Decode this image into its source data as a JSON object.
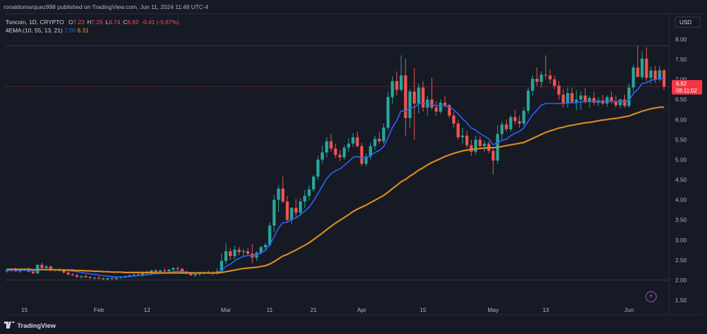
{
  "header": {
    "publisher_line": "ronaldomarquez998 published on TradingView.com, Jun 11, 2024 11:48 UTC-4",
    "symbol_line": "Toncoin, 1D, CRYPTO",
    "ohlc": [
      {
        "k": "O",
        "v": "7.23"
      },
      {
        "k": "H",
        "v": "7.25"
      },
      {
        "k": "L",
        "v": "6.74"
      },
      {
        "k": "C",
        "v": "6.82"
      },
      {
        "k": "",
        "v": "-0.41 (-5.67%)"
      }
    ],
    "indicator_label": "4EMA (10, 55, 13, 21)",
    "ema_fast_value": "7.00",
    "ema_slow_value": "6.31"
  },
  "currency_button": "USD",
  "last_price_tag": {
    "price": "6.82",
    "countdown": "08:11:02"
  },
  "brand": "TradingView",
  "colors": {
    "background": "#161a25",
    "up": "#26a69a",
    "down": "#ef5350",
    "ema_fast": "#2962ff",
    "ema_slow": "#d98b1e"
  },
  "chart_data": {
    "type": "candlestick",
    "ylim": [
      1.5,
      8.0
    ],
    "y_ticks": [
      "8.00",
      "7.50",
      "7.00",
      "6.50",
      "6.00",
      "5.50",
      "5.00",
      "4.50",
      "4.00",
      "3.50",
      "3.00",
      "2.50",
      "2.00",
      "1.50"
    ],
    "x_ticks": [
      {
        "label": "15",
        "index": 4
      },
      {
        "label": "Feb",
        "index": 21
      },
      {
        "label": "12",
        "index": 32
      },
      {
        "label": "Mar",
        "index": 50
      },
      {
        "label": "11",
        "index": 60
      },
      {
        "label": "21",
        "index": 70
      },
      {
        "label": "Apr",
        "index": 81
      },
      {
        "label": "15",
        "index": 95
      },
      {
        "label": "May",
        "index": 111
      },
      {
        "label": "13",
        "index": 123
      },
      {
        "label": "Jun",
        "index": 142
      }
    ],
    "candles": [
      [
        2.22,
        2.28,
        2.18,
        2.25
      ],
      [
        2.25,
        2.3,
        2.2,
        2.27
      ],
      [
        2.27,
        2.31,
        2.2,
        2.22
      ],
      [
        2.22,
        2.26,
        2.18,
        2.24
      ],
      [
        2.24,
        2.3,
        2.22,
        2.28
      ],
      [
        2.28,
        2.32,
        2.2,
        2.21
      ],
      [
        2.21,
        2.24,
        2.15,
        2.17
      ],
      [
        2.17,
        2.4,
        2.15,
        2.38
      ],
      [
        2.38,
        2.44,
        2.28,
        2.3
      ],
      [
        2.3,
        2.38,
        2.26,
        2.34
      ],
      [
        2.34,
        2.36,
        2.22,
        2.24
      ],
      [
        2.24,
        2.28,
        2.2,
        2.26
      ],
      [
        2.26,
        2.3,
        2.22,
        2.27
      ],
      [
        2.27,
        2.28,
        2.16,
        2.19
      ],
      [
        2.19,
        2.22,
        2.12,
        2.14
      ],
      [
        2.14,
        2.18,
        2.1,
        2.12
      ],
      [
        2.12,
        2.16,
        2.06,
        2.08
      ],
      [
        2.08,
        2.12,
        2.04,
        2.1
      ],
      [
        2.1,
        2.14,
        2.06,
        2.07
      ],
      [
        2.07,
        2.1,
        2.03,
        2.05
      ],
      [
        2.05,
        2.08,
        2.01,
        2.06
      ],
      [
        2.06,
        2.1,
        2.02,
        2.04
      ],
      [
        2.04,
        2.07,
        2.0,
        2.02
      ],
      [
        2.02,
        2.06,
        1.99,
        2.05
      ],
      [
        2.05,
        2.08,
        2.01,
        2.03
      ],
      [
        2.03,
        2.07,
        2.0,
        2.06
      ],
      [
        2.06,
        2.1,
        2.03,
        2.08
      ],
      [
        2.08,
        2.12,
        2.05,
        2.1
      ],
      [
        2.1,
        2.14,
        2.07,
        2.12
      ],
      [
        2.12,
        2.16,
        2.08,
        2.14
      ],
      [
        2.14,
        2.2,
        2.1,
        2.12
      ],
      [
        2.12,
        2.22,
        2.08,
        2.2
      ],
      [
        2.2,
        2.24,
        2.14,
        2.16
      ],
      [
        2.16,
        2.26,
        2.12,
        2.24
      ],
      [
        2.24,
        2.28,
        2.18,
        2.2
      ],
      [
        2.2,
        2.26,
        2.16,
        2.24
      ],
      [
        2.24,
        2.3,
        2.2,
        2.22
      ],
      [
        2.22,
        2.28,
        2.18,
        2.26
      ],
      [
        2.26,
        2.32,
        2.22,
        2.3
      ],
      [
        2.3,
        2.34,
        2.24,
        2.28
      ],
      [
        2.28,
        2.3,
        2.18,
        2.2
      ],
      [
        2.2,
        2.24,
        2.14,
        2.16
      ],
      [
        2.16,
        2.2,
        2.1,
        2.12
      ],
      [
        2.12,
        2.18,
        2.08,
        2.15
      ],
      [
        2.15,
        2.2,
        2.1,
        2.18
      ],
      [
        2.18,
        2.22,
        2.14,
        2.2
      ],
      [
        2.2,
        2.24,
        2.16,
        2.18
      ],
      [
        2.18,
        2.22,
        2.12,
        2.16
      ],
      [
        2.16,
        2.3,
        2.14,
        2.22
      ],
      [
        2.22,
        2.66,
        2.18,
        2.48
      ],
      [
        2.48,
        2.92,
        2.4,
        2.72
      ],
      [
        2.72,
        2.8,
        2.5,
        2.6
      ],
      [
        2.6,
        2.86,
        2.52,
        2.76
      ],
      [
        2.76,
        2.82,
        2.62,
        2.7
      ],
      [
        2.7,
        2.78,
        2.58,
        2.72
      ],
      [
        2.72,
        2.8,
        2.6,
        2.66
      ],
      [
        2.66,
        2.9,
        2.42,
        2.56
      ],
      [
        2.56,
        2.72,
        2.48,
        2.68
      ],
      [
        2.68,
        2.86,
        2.64,
        2.82
      ],
      [
        2.82,
        2.92,
        2.72,
        2.88
      ],
      [
        2.88,
        3.44,
        2.84,
        3.36
      ],
      [
        3.36,
        4.12,
        3.2,
        4.0
      ],
      [
        4.0,
        4.36,
        3.7,
        4.28
      ],
      [
        4.28,
        4.58,
        3.92,
        3.96
      ],
      [
        3.96,
        4.1,
        3.46,
        3.5
      ],
      [
        3.5,
        3.82,
        3.4,
        3.8
      ],
      [
        3.8,
        4.02,
        3.56,
        3.68
      ],
      [
        3.68,
        4.04,
        3.6,
        3.96
      ],
      [
        3.96,
        4.24,
        3.8,
        4.1
      ],
      [
        4.1,
        4.36,
        3.98,
        4.26
      ],
      [
        4.26,
        4.62,
        4.2,
        4.58
      ],
      [
        4.58,
        5.1,
        4.5,
        5.0
      ],
      [
        5.0,
        5.36,
        4.9,
        5.18
      ],
      [
        5.18,
        5.56,
        5.06,
        5.46
      ],
      [
        5.46,
        5.64,
        5.2,
        5.28
      ],
      [
        5.28,
        5.4,
        5.04,
        5.12
      ],
      [
        5.12,
        5.24,
        4.96,
        5.06
      ],
      [
        5.06,
        5.36,
        5.0,
        5.3
      ],
      [
        5.3,
        5.54,
        5.2,
        5.4
      ],
      [
        5.4,
        5.66,
        5.32,
        5.56
      ],
      [
        5.56,
        5.7,
        5.3,
        5.34
      ],
      [
        5.34,
        5.42,
        4.84,
        4.9
      ],
      [
        4.9,
        5.16,
        4.84,
        5.08
      ],
      [
        5.08,
        5.42,
        5.0,
        5.34
      ],
      [
        5.34,
        5.6,
        5.24,
        5.52
      ],
      [
        5.52,
        5.7,
        5.4,
        5.46
      ],
      [
        5.46,
        5.9,
        5.4,
        5.8
      ],
      [
        5.8,
        6.7,
        5.72,
        6.56
      ],
      [
        6.56,
        7.08,
        6.4,
        6.96
      ],
      [
        6.96,
        7.2,
        6.6,
        6.74
      ],
      [
        6.74,
        7.6,
        6.7,
        7.1
      ],
      [
        7.1,
        7.52,
        5.6,
        6.04
      ],
      [
        6.04,
        6.76,
        5.8,
        6.7
      ],
      [
        6.7,
        7.28,
        5.5,
        6.4
      ],
      [
        6.4,
        6.9,
        6.16,
        6.8
      ],
      [
        6.8,
        6.96,
        6.2,
        6.3
      ],
      [
        6.3,
        6.6,
        6.1,
        6.5
      ],
      [
        6.5,
        7.04,
        6.24,
        6.3
      ],
      [
        6.3,
        6.46,
        6.1,
        6.2
      ],
      [
        6.2,
        6.5,
        6.14,
        6.42
      ],
      [
        6.42,
        6.58,
        6.3,
        6.36
      ],
      [
        6.36,
        6.4,
        6.04,
        6.1
      ],
      [
        6.1,
        6.2,
        5.8,
        5.9
      ],
      [
        5.9,
        6.0,
        5.5,
        5.56
      ],
      [
        5.56,
        5.8,
        5.4,
        5.6
      ],
      [
        5.6,
        5.72,
        5.3,
        5.36
      ],
      [
        5.36,
        5.5,
        5.1,
        5.2
      ],
      [
        5.2,
        5.6,
        5.12,
        5.5
      ],
      [
        5.5,
        5.58,
        5.28,
        5.34
      ],
      [
        5.34,
        5.48,
        5.2,
        5.4
      ],
      [
        5.4,
        5.46,
        5.16,
        5.22
      ],
      [
        5.22,
        5.28,
        4.62,
        4.98
      ],
      [
        4.98,
        5.86,
        4.9,
        5.64
      ],
      [
        5.64,
        5.96,
        5.5,
        5.88
      ],
      [
        5.88,
        6.0,
        5.7,
        5.76
      ],
      [
        5.76,
        6.12,
        5.7,
        6.06
      ],
      [
        6.06,
        6.24,
        5.88,
        5.96
      ],
      [
        5.96,
        6.1,
        5.8,
        5.9
      ],
      [
        5.9,
        6.3,
        5.84,
        6.22
      ],
      [
        6.22,
        6.8,
        6.14,
        6.72
      ],
      [
        6.72,
        7.1,
        6.6,
        7.02
      ],
      [
        7.02,
        7.3,
        6.84,
        6.94
      ],
      [
        6.94,
        7.2,
        6.8,
        7.12
      ],
      [
        7.12,
        7.6,
        7.0,
        7.1
      ],
      [
        7.1,
        7.24,
        6.9,
        7.0
      ],
      [
        7.0,
        7.1,
        6.76,
        6.84
      ],
      [
        6.84,
        6.96,
        6.5,
        6.62
      ],
      [
        6.62,
        6.76,
        6.3,
        6.4
      ],
      [
        6.4,
        6.8,
        6.3,
        6.66
      ],
      [
        6.66,
        6.8,
        6.4,
        6.44
      ],
      [
        6.44,
        6.74,
        6.22,
        6.5
      ],
      [
        6.5,
        6.7,
        6.24,
        6.6
      ],
      [
        6.6,
        6.78,
        6.4,
        6.46
      ],
      [
        6.46,
        6.6,
        6.3,
        6.54
      ],
      [
        6.54,
        6.7,
        6.36,
        6.42
      ],
      [
        6.42,
        6.56,
        6.34,
        6.48
      ],
      [
        6.48,
        6.62,
        6.36,
        6.4
      ],
      [
        6.4,
        6.6,
        6.32,
        6.56
      ],
      [
        6.56,
        6.7,
        6.4,
        6.44
      ],
      [
        6.44,
        6.6,
        6.3,
        6.36
      ],
      [
        6.36,
        6.52,
        6.28,
        6.5
      ],
      [
        6.5,
        6.62,
        6.3,
        6.34
      ],
      [
        6.34,
        6.9,
        6.3,
        6.8
      ],
      [
        6.8,
        7.36,
        6.7,
        7.3
      ],
      [
        7.3,
        7.84,
        7.1,
        7.06
      ],
      [
        7.06,
        7.7,
        7.0,
        7.52
      ],
      [
        7.52,
        7.8,
        6.96,
        7.04
      ],
      [
        7.04,
        7.32,
        6.9,
        7.22
      ],
      [
        7.22,
        7.34,
        6.92,
        7.0
      ],
      [
        7.0,
        7.34,
        6.94,
        7.23
      ],
      [
        7.23,
        7.25,
        6.74,
        6.82
      ]
    ],
    "series": [
      {
        "name": "EMA",
        "role": "fast",
        "values": [
          2.24,
          2.25,
          2.25,
          2.25,
          2.25,
          2.24,
          2.23,
          2.24,
          2.26,
          2.26,
          2.26,
          2.26,
          2.26,
          2.25,
          2.24,
          2.22,
          2.21,
          2.19,
          2.17,
          2.16,
          2.14,
          2.13,
          2.11,
          2.1,
          2.09,
          2.08,
          2.08,
          2.08,
          2.09,
          2.1,
          2.11,
          2.12,
          2.13,
          2.15,
          2.16,
          2.17,
          2.18,
          2.19,
          2.21,
          2.22,
          2.21,
          2.2,
          2.19,
          2.18,
          2.18,
          2.18,
          2.18,
          2.18,
          2.19,
          2.24,
          2.34,
          2.4,
          2.48,
          2.54,
          2.59,
          2.61,
          2.61,
          2.63,
          2.68,
          2.74,
          2.88,
          3.08,
          3.3,
          3.43,
          3.44,
          3.51,
          3.55,
          3.63,
          3.72,
          3.82,
          3.97,
          4.16,
          4.34,
          4.53,
          4.65,
          4.72,
          4.77,
          4.86,
          4.95,
          5.06,
          5.08,
          5.04,
          5.05,
          5.1,
          5.18,
          5.23,
          5.33,
          5.55,
          5.81,
          5.98,
          6.22,
          6.2,
          6.29,
          6.3,
          6.4,
          6.4,
          6.4,
          6.38,
          6.34,
          6.35,
          6.35,
          6.31,
          6.25,
          6.14,
          6.02,
          5.92,
          5.79,
          5.74,
          5.65,
          5.59,
          5.52,
          5.37,
          5.43,
          5.48,
          5.51,
          5.6,
          5.66,
          5.71,
          5.79,
          5.96,
          6.12,
          6.24,
          6.36,
          6.4,
          6.4,
          6.4,
          6.4,
          6.4,
          6.42,
          6.42,
          6.42,
          6.44,
          6.45,
          6.45,
          6.45,
          6.45,
          6.46,
          6.46,
          6.46,
          6.45,
          6.46,
          6.44,
          6.48,
          6.65,
          6.75,
          6.9,
          6.92,
          6.98,
          7.0,
          7.03,
          7.0
        ]
      },
      {
        "name": "EMA",
        "role": "slow",
        "values": [
          2.27,
          2.27,
          2.27,
          2.27,
          2.27,
          2.27,
          2.26,
          2.26,
          2.26,
          2.26,
          2.26,
          2.26,
          2.25,
          2.25,
          2.25,
          2.25,
          2.24,
          2.24,
          2.23,
          2.23,
          2.22,
          2.22,
          2.21,
          2.21,
          2.2,
          2.2,
          2.2,
          2.19,
          2.19,
          2.19,
          2.19,
          2.19,
          2.19,
          2.19,
          2.18,
          2.18,
          2.18,
          2.18,
          2.18,
          2.18,
          2.18,
          2.18,
          2.18,
          2.18,
          2.18,
          2.18,
          2.18,
          2.18,
          2.18,
          2.19,
          2.21,
          2.23,
          2.25,
          2.27,
          2.29,
          2.3,
          2.31,
          2.32,
          2.34,
          2.36,
          2.4,
          2.46,
          2.53,
          2.6,
          2.64,
          2.7,
          2.75,
          2.81,
          2.87,
          2.93,
          3.01,
          3.09,
          3.17,
          3.26,
          3.34,
          3.42,
          3.49,
          3.56,
          3.63,
          3.71,
          3.77,
          3.82,
          3.87,
          3.93,
          3.99,
          4.05,
          4.11,
          4.19,
          4.28,
          4.36,
          4.45,
          4.51,
          4.59,
          4.66,
          4.74,
          4.8,
          4.87,
          4.93,
          4.98,
          5.03,
          5.08,
          5.12,
          5.16,
          5.19,
          5.22,
          5.24,
          5.26,
          5.27,
          5.28,
          5.29,
          5.3,
          5.3,
          5.31,
          5.33,
          5.35,
          5.37,
          5.39,
          5.41,
          5.43,
          5.48,
          5.53,
          5.58,
          5.63,
          5.68,
          5.72,
          5.75,
          5.79,
          5.81,
          5.84,
          5.86,
          5.88,
          5.9,
          5.92,
          5.93,
          5.95,
          5.97,
          5.99,
          6.0,
          6.02,
          6.03,
          6.05,
          6.07,
          6.09,
          6.13,
          6.17,
          6.21,
          6.24,
          6.27,
          6.29,
          6.31,
          6.31
        ]
      }
    ]
  }
}
